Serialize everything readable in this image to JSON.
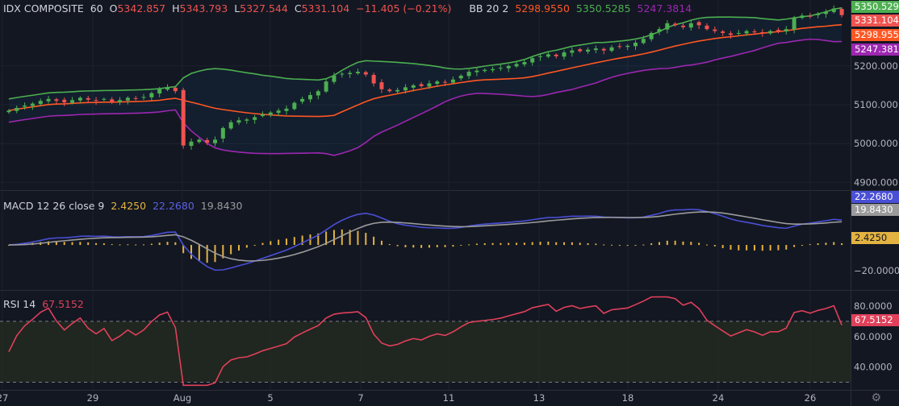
{
  "legend_main": {
    "symbol": "IDX COMPOSITE",
    "interval": "60",
    "o_label": "O",
    "o_value": "5342.857",
    "h_label": "H",
    "h_value": "5343.793",
    "l_label": "L",
    "l_value": "5327.544",
    "c_label": "C",
    "c_value": "5331.104",
    "change": "−11.405 (−0.21%)",
    "bb_label": "BB 20 2",
    "bb_basis": "5298.9550",
    "bb_upper": "5350.5285",
    "bb_lower": "5247.3814"
  },
  "legend_macd": {
    "label": "MACD 12 26 close 9",
    "hist": "2.4250",
    "macd": "22.2680",
    "signal": "19.8430"
  },
  "legend_rsi": {
    "label": "RSI 14",
    "value": "67.5152"
  },
  "price_tags": {
    "upper": "5350.529",
    "close": "5331.104",
    "basis": "5298.955",
    "lower": "5247.381",
    "macd": "22.2680",
    "signal": "19.8430",
    "hist": "2.4250",
    "rsi": "67.5152"
  },
  "colors": {
    "background": "#131722",
    "up_candle": "#4caf50",
    "down_candle": "#ef5350",
    "bb_basis": "#ff5722",
    "bb_upper": "#4caf50",
    "bb_lower": "#9c27b0",
    "macd_line": "#4a4fd6",
    "signal_line": "#9b9b9b",
    "histogram": "#e3b341",
    "rsi_line": "#e0405a",
    "rsi_band_fill": "#2a3020"
  },
  "chart_data": [
    {
      "type": "candlestick",
      "title": "IDX COMPOSITE",
      "interval": "60",
      "price_axis_ticks": [
        "5200.000",
        "5100.000",
        "5000.000",
        "4900.000"
      ],
      "ylim": [
        4880,
        5370
      ],
      "time_axis_ticks": [
        "27",
        "29",
        "Aug",
        "5",
        "7",
        "11",
        "13",
        "18",
        "24",
        "26"
      ],
      "overlay": "Bollinger Bands (20, 2)",
      "close_series": [
        5085,
        5092,
        5098,
        5103,
        5110,
        5115,
        5110,
        5106,
        5112,
        5118,
        5113,
        5110,
        5115,
        5108,
        5112,
        5118,
        5115,
        5120,
        5130,
        5140,
        5145,
        5135,
        4995,
        5005,
        5010,
        5002,
        5010,
        5040,
        5055,
        5060,
        5062,
        5068,
        5075,
        5080,
        5085,
        5090,
        5105,
        5115,
        5125,
        5135,
        5160,
        5175,
        5180,
        5182,
        5185,
        5178,
        5155,
        5140,
        5135,
        5138,
        5145,
        5150,
        5148,
        5155,
        5160,
        5158,
        5165,
        5175,
        5185,
        5188,
        5190,
        5192,
        5195,
        5200,
        5205,
        5210,
        5220,
        5225,
        5230,
        5225,
        5235,
        5240,
        5238,
        5242,
        5245,
        5240,
        5248,
        5250,
        5252,
        5260,
        5270,
        5285,
        5295,
        5310,
        5305,
        5300,
        5310,
        5305,
        5295,
        5290,
        5285,
        5280,
        5285,
        5290,
        5288,
        5285,
        5290,
        5290,
        5295,
        5325,
        5330,
        5328,
        5335,
        5340,
        5348,
        5331.104
      ]
    },
    {
      "type": "line",
      "title": "MACD 12 26 close 9",
      "axis_ticks": [
        "−20.0000"
      ],
      "ylim": [
        -35,
        42
      ],
      "last_values": {
        "histogram": 2.425,
        "macd": 22.268,
        "signal": 19.843
      }
    },
    {
      "type": "line",
      "title": "RSI 14",
      "axis_ticks": [
        "80.0000",
        "60.0000",
        "40.0000"
      ],
      "ylim": [
        25,
        90
      ],
      "bands": [
        70,
        30
      ],
      "last_value": 67.5152
    }
  ]
}
